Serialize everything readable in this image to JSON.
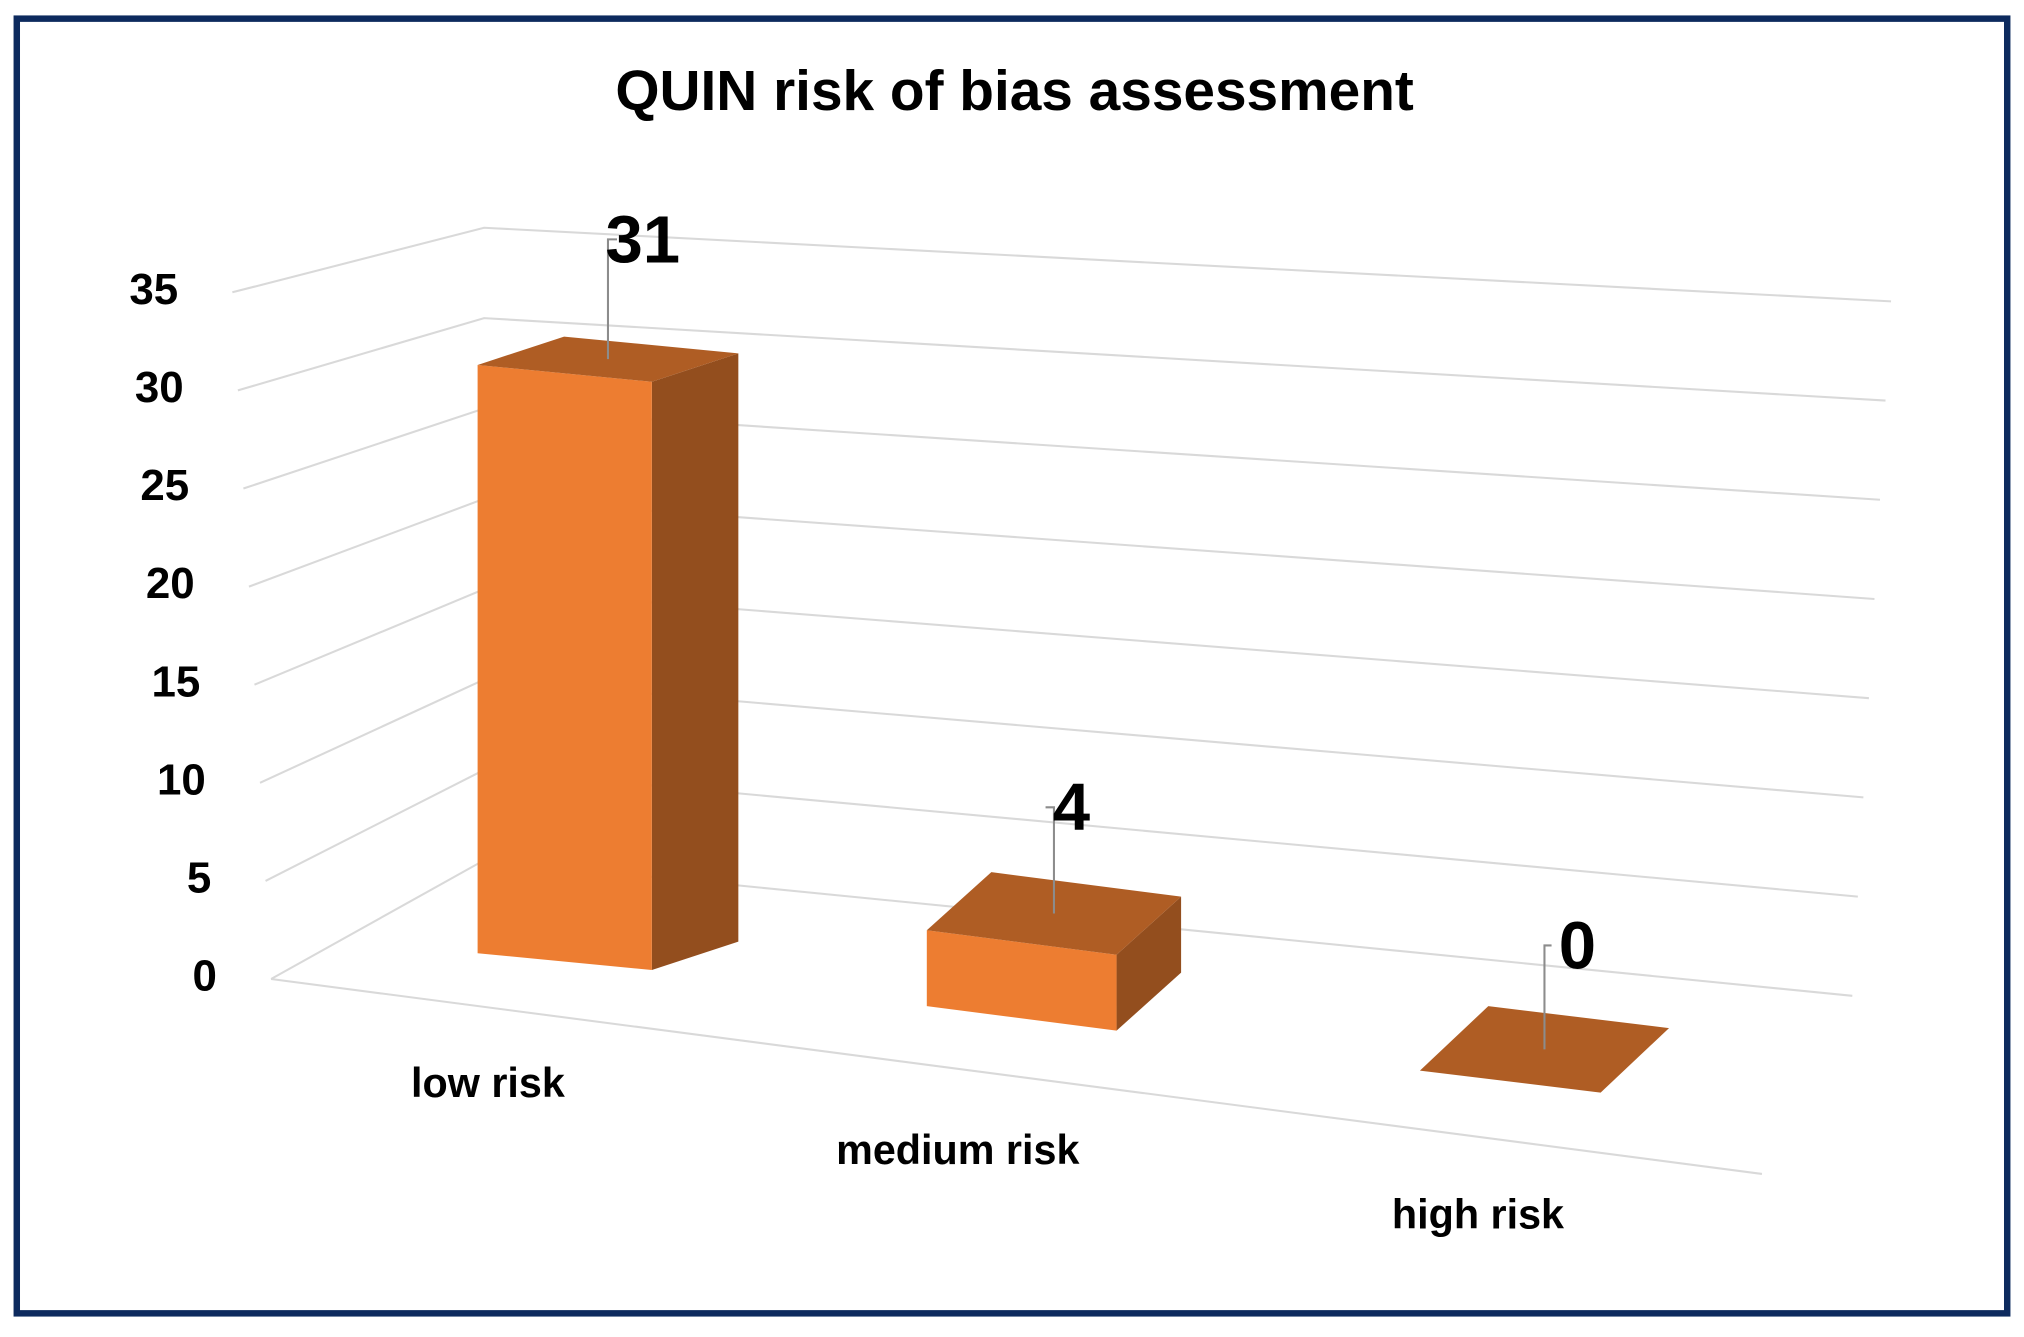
{
  "chart_data": {
    "type": "bar3d",
    "title": "QUIN risk of bias assessment",
    "categories": [
      "low risk",
      "medium risk",
      "high risk"
    ],
    "values": [
      31,
      4,
      0
    ],
    "color": "#ed7d31",
    "ylim": [
      0,
      35
    ],
    "yticks": [
      0,
      5,
      10,
      15,
      20,
      25,
      30,
      35
    ],
    "grid": true
  }
}
